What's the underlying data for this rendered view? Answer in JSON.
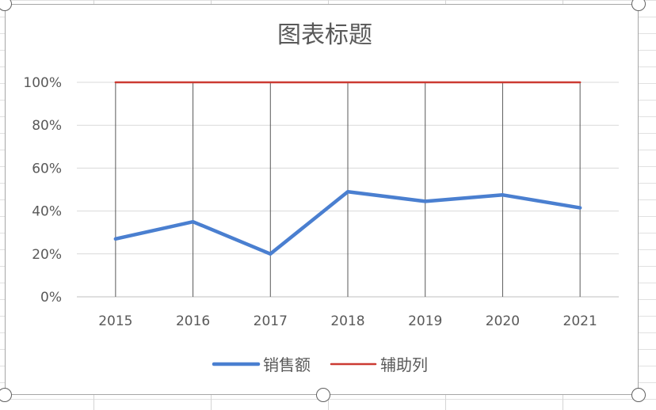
{
  "chart_data": {
    "type": "line",
    "title": "图表标题",
    "categories": [
      "2015",
      "2016",
      "2017",
      "2018",
      "2019",
      "2020",
      "2021"
    ],
    "y_tick_labels": [
      "0%",
      "20%",
      "40%",
      "60%",
      "80%",
      "100%"
    ],
    "ylim": [
      0,
      1
    ],
    "series": [
      {
        "name": "销售额",
        "color": "#4a7fd0",
        "values": [
          0.27,
          0.35,
          0.2,
          0.49,
          0.445,
          0.475,
          0.415
        ]
      },
      {
        "name": "辅助列",
        "color": "#cc3a32",
        "values": [
          1.0,
          1.0,
          1.0,
          1.0,
          1.0,
          1.0,
          1.0
        ]
      }
    ],
    "drop_lines": true,
    "grid": "horizontal",
    "legend_position": "bottom"
  }
}
